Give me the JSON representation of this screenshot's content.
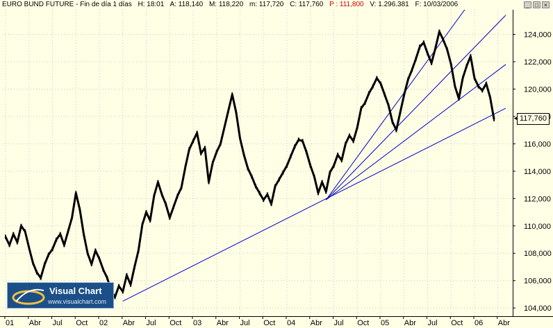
{
  "header": {
    "instrument": "EURO BUND FUTURE - Fin de día 1 días",
    "time": "H: 18:01",
    "open": "A: 118,140",
    "high": "M: 118,220",
    "low": "m: 117,720",
    "close": "C: 117,760",
    "prior": "P : 111,800",
    "volume": "V: 1.296.381",
    "date": "F: 10/03/2006"
  },
  "window_buttons": [
    "_",
    "□",
    "×"
  ],
  "logo": {
    "title": "Visual Chart",
    "url": "www.visualchart.com"
  },
  "last_price": "117,760",
  "colors": {
    "background": "#ffffe6",
    "price": "#000000",
    "trendline": "#0000cc",
    "grid": "#c8c8c8"
  },
  "chart_data": {
    "type": "line",
    "title": "EURO BUND FUTURE",
    "x_start": "2001-01",
    "x_end": "2006-05",
    "ylim": [
      103.4,
      125.8
    ],
    "y_ticks": [
      "104,000",
      "106,000",
      "108,000",
      "110,000",
      "112,000",
      "114,000",
      "116,000",
      "118,000",
      "120,000",
      "122,000",
      "124,000"
    ],
    "y_tick_values": [
      104,
      106,
      108,
      110,
      112,
      114,
      116,
      118,
      120,
      122,
      124
    ],
    "x_ticks": [
      {
        "label": "01",
        "date": "2001-01"
      },
      {
        "label": "Abr",
        "date": "2001-04"
      },
      {
        "label": "Jul",
        "date": "2001-07"
      },
      {
        "label": "Oct",
        "date": "2001-10"
      },
      {
        "label": "02",
        "date": "2002-01"
      },
      {
        "label": "Abr",
        "date": "2002-04"
      },
      {
        "label": "Jul",
        "date": "2002-07"
      },
      {
        "label": "Oct",
        "date": "2002-10"
      },
      {
        "label": "03",
        "date": "2003-01"
      },
      {
        "label": "Abr",
        "date": "2003-04"
      },
      {
        "label": "Jul",
        "date": "2003-07"
      },
      {
        "label": "Oct",
        "date": "2003-10"
      },
      {
        "label": "04",
        "date": "2004-01"
      },
      {
        "label": "Abr",
        "date": "2004-04"
      },
      {
        "label": "Jul",
        "date": "2004-07"
      },
      {
        "label": "Oct",
        "date": "2004-10"
      },
      {
        "label": "05",
        "date": "2005-01"
      },
      {
        "label": "Abr",
        "date": "2005-04"
      },
      {
        "label": "Jul",
        "date": "2005-07"
      },
      {
        "label": "Oct",
        "date": "2005-10"
      },
      {
        "label": "06",
        "date": "2006-01"
      },
      {
        "label": "Abr",
        "date": "2006-04"
      }
    ],
    "series": [
      {
        "name": "EURO BUND FUTURE",
        "points": [
          [
            "2001-01",
            109.2
          ],
          [
            "2001-01",
            108.6
          ],
          [
            "2001-02",
            109.4
          ],
          [
            "2001-02",
            108.8
          ],
          [
            "2001-03",
            110.0
          ],
          [
            "2001-03",
            109.6
          ],
          [
            "2001-04",
            108.4
          ],
          [
            "2001-04",
            107.3
          ],
          [
            "2001-05",
            106.6
          ],
          [
            "2001-05",
            106.2
          ],
          [
            "2001-06",
            107.2
          ],
          [
            "2001-06",
            107.9
          ],
          [
            "2001-07",
            108.3
          ],
          [
            "2001-07",
            109.0
          ],
          [
            "2001-08",
            109.4
          ],
          [
            "2001-08",
            108.6
          ],
          [
            "2001-09",
            109.6
          ],
          [
            "2001-09",
            110.6
          ],
          [
            "2001-10",
            112.4
          ],
          [
            "2001-10",
            111.2
          ],
          [
            "2001-11",
            109.4
          ],
          [
            "2001-11",
            108.0
          ],
          [
            "2001-12",
            107.2
          ],
          [
            "2001-12",
            108.2
          ],
          [
            "2002-01",
            107.6
          ],
          [
            "2002-01",
            106.8
          ],
          [
            "2002-02",
            106.2
          ],
          [
            "2002-02",
            105.3
          ],
          [
            "2002-03",
            104.8
          ],
          [
            "2002-03",
            105.6
          ],
          [
            "2002-04",
            105.2
          ],
          [
            "2002-04",
            106.4
          ],
          [
            "2002-05",
            105.7
          ],
          [
            "2002-05",
            107.0
          ],
          [
            "2002-06",
            108.2
          ],
          [
            "2002-06",
            110.1
          ],
          [
            "2002-07",
            111.0
          ],
          [
            "2002-07",
            110.4
          ],
          [
            "2002-08",
            112.2
          ],
          [
            "2002-08",
            113.2
          ],
          [
            "2002-09",
            112.3
          ],
          [
            "2002-09",
            111.6
          ],
          [
            "2002-10",
            110.6
          ],
          [
            "2002-10",
            111.4
          ],
          [
            "2002-11",
            112.2
          ],
          [
            "2002-11",
            112.8
          ],
          [
            "2002-12",
            114.3
          ],
          [
            "2002-12",
            115.6
          ],
          [
            "2003-01",
            116.2
          ],
          [
            "2003-01",
            116.8
          ],
          [
            "2003-02",
            115.3
          ],
          [
            "2003-02",
            115.7
          ],
          [
            "2003-03",
            113.2
          ],
          [
            "2003-03",
            114.6
          ],
          [
            "2003-04",
            115.4
          ],
          [
            "2003-04",
            116.0
          ],
          [
            "2003-05",
            117.2
          ],
          [
            "2003-05",
            118.4
          ],
          [
            "2003-06",
            119.6
          ],
          [
            "2003-06",
            118.3
          ],
          [
            "2003-07",
            116.4
          ],
          [
            "2003-07",
            115.2
          ],
          [
            "2003-08",
            114.2
          ],
          [
            "2003-08",
            113.6
          ],
          [
            "2003-09",
            112.9
          ],
          [
            "2003-09",
            112.4
          ],
          [
            "2003-10",
            111.9
          ],
          [
            "2003-10",
            112.3
          ],
          [
            "2003-11",
            111.6
          ],
          [
            "2003-11",
            112.9
          ],
          [
            "2003-12",
            113.4
          ],
          [
            "2003-12",
            113.9
          ],
          [
            "2004-01",
            114.4
          ],
          [
            "2004-01",
            115.1
          ],
          [
            "2004-02",
            115.8
          ],
          [
            "2004-02",
            116.3
          ],
          [
            "2004-03",
            116.2
          ],
          [
            "2004-03",
            115.4
          ],
          [
            "2004-04",
            114.4
          ],
          [
            "2004-04",
            113.6
          ],
          [
            "2004-05",
            112.4
          ],
          [
            "2004-05",
            113.2
          ],
          [
            "2004-06",
            112.5
          ],
          [
            "2004-06",
            113.9
          ],
          [
            "2004-07",
            114.4
          ],
          [
            "2004-07",
            115.2
          ],
          [
            "2004-08",
            114.8
          ],
          [
            "2004-08",
            116.0
          ],
          [
            "2004-09",
            116.6
          ],
          [
            "2004-09",
            116.2
          ],
          [
            "2004-10",
            117.2
          ],
          [
            "2004-10",
            118.6
          ],
          [
            "2004-11",
            119.0
          ],
          [
            "2004-11",
            119.7
          ],
          [
            "2004-12",
            120.2
          ],
          [
            "2004-12",
            120.8
          ],
          [
            "2005-01",
            120.4
          ],
          [
            "2005-01",
            119.6
          ],
          [
            "2005-02",
            118.8
          ],
          [
            "2005-02",
            117.6
          ],
          [
            "2005-03",
            117.0
          ],
          [
            "2005-03",
            118.3
          ],
          [
            "2005-04",
            119.6
          ],
          [
            "2005-04",
            120.7
          ],
          [
            "2005-05",
            121.4
          ],
          [
            "2005-05",
            122.2
          ],
          [
            "2005-06",
            123.1
          ],
          [
            "2005-06",
            123.4
          ],
          [
            "2005-07",
            122.6
          ],
          [
            "2005-07",
            121.9
          ],
          [
            "2005-08",
            123.0
          ],
          [
            "2005-08",
            124.2
          ],
          [
            "2005-09",
            123.6
          ],
          [
            "2005-09",
            122.9
          ],
          [
            "2005-10",
            121.8
          ],
          [
            "2005-10",
            120.2
          ],
          [
            "2005-11",
            119.3
          ],
          [
            "2005-11",
            120.8
          ],
          [
            "2005-12",
            121.7
          ],
          [
            "2005-12",
            122.4
          ],
          [
            "2006-01",
            120.8
          ],
          [
            "2006-01",
            120.2
          ],
          [
            "2006-02",
            119.9
          ],
          [
            "2006-02",
            120.4
          ],
          [
            "2006-03",
            119.4
          ],
          [
            "2006-03",
            117.8
          ]
        ]
      }
    ],
    "trendlines": [
      {
        "from": [
          "2002-04",
          104.5
        ],
        "to": [
          "2006-05",
          118.6
        ]
      },
      {
        "from": [
          "2004-06",
          111.9
        ],
        "to": [
          "2006-05",
          121.8
        ]
      },
      {
        "from": [
          "2004-06",
          111.9
        ],
        "to": [
          "2006-05",
          125.4
        ]
      },
      {
        "from": [
          "2004-06",
          111.9
        ],
        "to": [
          "2005-12",
          126.0
        ]
      }
    ],
    "last_value": 117.76,
    "grid": true
  }
}
